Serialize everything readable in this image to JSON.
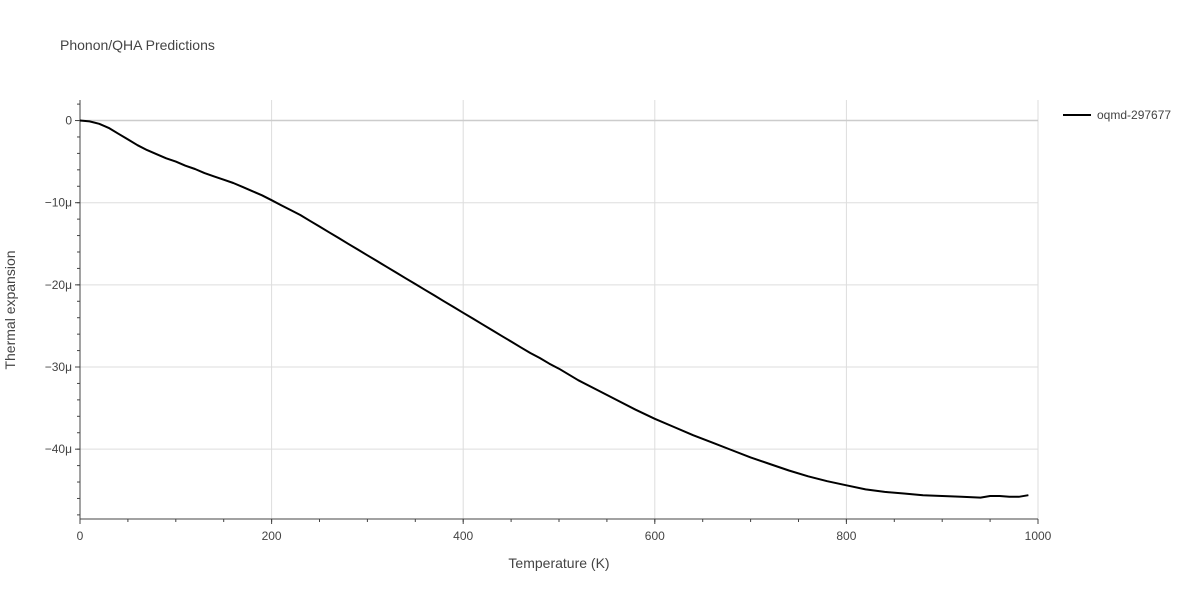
{
  "chart_data": {
    "type": "line",
    "title": "Phonon/QHA Predictions",
    "xlabel": "Temperature (K)",
    "ylabel": "Thermal expansion",
    "xlim": [
      0,
      1000
    ],
    "ylim": [
      -48.5,
      2.5
    ],
    "y_unit_suffix": "μ",
    "x_ticks": [
      0,
      200,
      400,
      600,
      800,
      1000
    ],
    "y_ticks": [
      0,
      -10,
      -20,
      -30,
      -40
    ],
    "x_tick_labels": [
      "0",
      "200",
      "400",
      "600",
      "800",
      "1000"
    ],
    "y_tick_labels": [
      "0",
      "−10μ",
      "−20μ",
      "−30μ",
      "−40μ"
    ],
    "grid": true,
    "legend_position": "top-right",
    "series": [
      {
        "name": "oqmd-297677",
        "color": "#000000",
        "x": [
          0,
          10,
          20,
          30,
          40,
          50,
          60,
          70,
          80,
          90,
          100,
          110,
          120,
          130,
          140,
          150,
          160,
          170,
          180,
          190,
          200,
          210,
          220,
          230,
          240,
          250,
          260,
          270,
          280,
          290,
          300,
          310,
          320,
          330,
          340,
          350,
          360,
          370,
          380,
          390,
          400,
          410,
          420,
          430,
          440,
          450,
          460,
          470,
          480,
          490,
          500,
          520,
          540,
          560,
          580,
          600,
          620,
          640,
          660,
          680,
          700,
          720,
          740,
          760,
          780,
          800,
          820,
          840,
          860,
          880,
          900,
          920,
          940,
          950,
          960,
          970,
          980,
          990
        ],
        "y": [
          0,
          -0.1,
          -0.4,
          -0.9,
          -1.6,
          -2.3,
          -3.0,
          -3.6,
          -4.1,
          -4.6,
          -5.0,
          -5.5,
          -5.9,
          -6.4,
          -6.8,
          -7.2,
          -7.6,
          -8.1,
          -8.6,
          -9.1,
          -9.7,
          -10.3,
          -10.9,
          -11.5,
          -12.2,
          -12.9,
          -13.6,
          -14.3,
          -15.0,
          -15.7,
          -16.4,
          -17.1,
          -17.8,
          -18.5,
          -19.2,
          -19.9,
          -20.6,
          -21.3,
          -22.0,
          -22.7,
          -23.4,
          -24.1,
          -24.8,
          -25.5,
          -26.2,
          -26.9,
          -27.6,
          -28.3,
          -28.9,
          -29.6,
          -30.2,
          -31.6,
          -32.8,
          -34.0,
          -35.2,
          -36.3,
          -37.3,
          -38.3,
          -39.2,
          -40.1,
          -41.0,
          -41.8,
          -42.6,
          -43.3,
          -43.9,
          -44.4,
          -44.9,
          -45.2,
          -45.4,
          -45.6,
          -45.7,
          -45.8,
          -45.9,
          -45.7,
          -45.7,
          -45.8,
          -45.8,
          -45.6
        ]
      }
    ]
  }
}
